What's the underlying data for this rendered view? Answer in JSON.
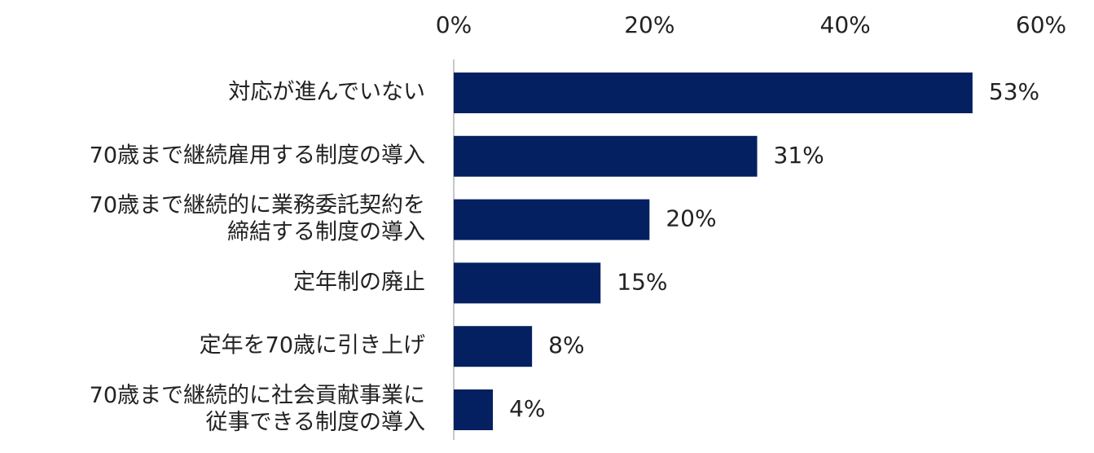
{
  "chart_data": {
    "type": "bar",
    "orientation": "horizontal",
    "title": "",
    "xlabel": "",
    "ylabel": "",
    "xlim": [
      0,
      60
    ],
    "x_ticks": [
      {
        "value": 0,
        "label": "0%"
      },
      {
        "value": 20,
        "label": "20%"
      },
      {
        "value": 40,
        "label": "40%"
      },
      {
        "value": 60,
        "label": "60%"
      }
    ],
    "x_axis_position": "top",
    "grid": false,
    "legend": "none",
    "bar_color": "#042060",
    "categories": [
      [
        "対応が進んでいない"
      ],
      [
        "70歳まで継続雇用する制度の導入"
      ],
      [
        "70歳まで継続的に業務委託契約を",
        "締結する制度の導入"
      ],
      [
        "定年制の廃止"
      ],
      [
        "定年を70歳に引き上げ"
      ],
      [
        "70歳まで継続的に社会貢献事業に",
        "従事できる制度の導入"
      ]
    ],
    "values": [
      53,
      31,
      20,
      15,
      8,
      4
    ],
    "value_labels": [
      "53%",
      "31%",
      "20%",
      "15%",
      "8%",
      "4%"
    ]
  }
}
